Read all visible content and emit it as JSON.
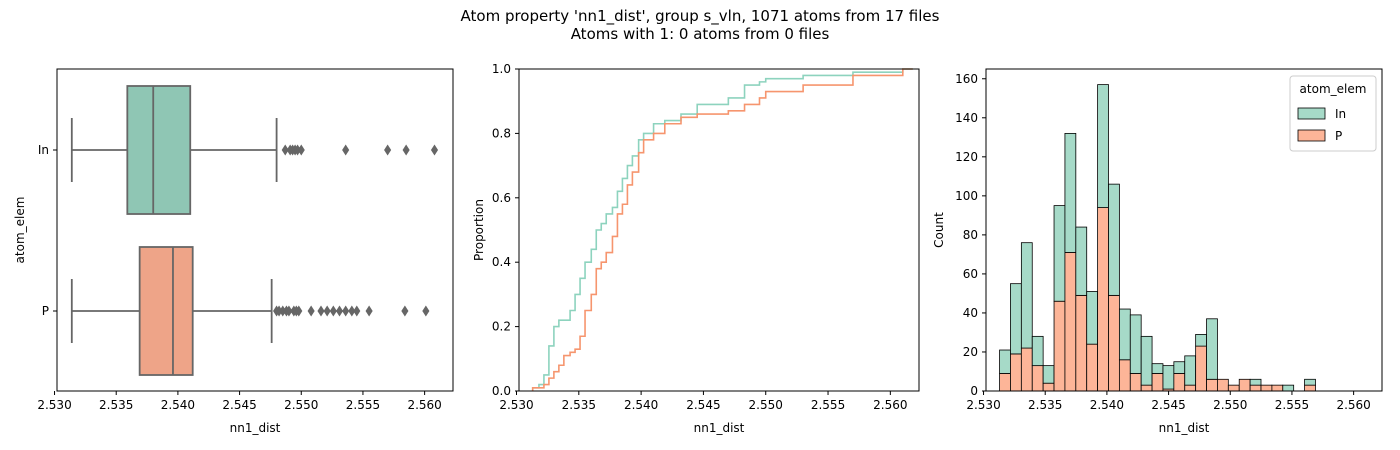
{
  "figure": {
    "title_line1": "Atom property 'nn1_dist', group s_vln, 1071 atoms from 17 files",
    "title_line2": "Atoms with 1: 0 atoms from 0 files"
  },
  "colors": {
    "In": "#8fc6b4",
    "P": "#eea488",
    "In_hist": "#a6dac8",
    "P_hist": "#fdb598",
    "In_ecdf": "#8dd3be",
    "P_ecdf": "#f6956e",
    "box_edge": "#666666"
  },
  "chart_data": [
    {
      "type": "box",
      "xlabel": "nn1_dist",
      "ylabel": "atom_elem",
      "xlim": [
        2.5302,
        2.5623
      ],
      "xticks": [
        "2.530",
        "2.535",
        "2.540",
        "2.545",
        "2.550",
        "2.555",
        "2.560"
      ],
      "categories": [
        "In",
        "P"
      ],
      "series": [
        {
          "name": "In",
          "whisker_low": 2.5314,
          "q1": 2.5359,
          "median": 2.538,
          "q3": 2.541,
          "whisker_high": 2.548,
          "outliers": [
            2.5487,
            2.5491,
            2.5493,
            2.5495,
            2.5497,
            2.55,
            2.5536,
            2.557,
            2.5585,
            2.5608
          ]
        },
        {
          "name": "P",
          "whisker_low": 2.5314,
          "q1": 2.5369,
          "median": 2.5396,
          "q3": 2.5412,
          "whisker_high": 2.5476,
          "outliers": [
            2.548,
            2.5482,
            2.5485,
            2.5488,
            2.549,
            2.5494,
            2.5496,
            2.5498,
            2.5508,
            2.5516,
            2.5521,
            2.5526,
            2.5531,
            2.5536,
            2.5541,
            2.5545,
            2.5555,
            2.5584,
            2.5601
          ]
        }
      ]
    },
    {
      "type": "line",
      "xlabel": "nn1_dist",
      "ylabel": "Proportion",
      "xlim": [
        2.5302,
        2.5623
      ],
      "ylim": [
        0,
        1
      ],
      "xticks": [
        "2.530",
        "2.535",
        "2.540",
        "2.545",
        "2.550",
        "2.555",
        "2.560"
      ],
      "yticks": [
        "0.0",
        "0.2",
        "0.4",
        "0.6",
        "0.8",
        "1.0"
      ],
      "series": [
        {
          "name": "In",
          "x": [
            2.5313,
            2.5318,
            2.5322,
            2.5326,
            2.533,
            2.5334,
            2.5338,
            2.5343,
            2.5347,
            2.5351,
            2.5355,
            2.536,
            2.5364,
            2.5368,
            2.5372,
            2.5377,
            2.5381,
            2.5385,
            2.5389,
            2.5393,
            2.5398,
            2.5402,
            2.541,
            2.5419,
            2.5432,
            2.5445,
            2.547,
            2.5483,
            2.5495,
            2.55,
            2.553,
            2.557,
            2.561
          ],
          "y": [
            0.01,
            0.02,
            0.05,
            0.14,
            0.2,
            0.22,
            0.22,
            0.25,
            0.3,
            0.35,
            0.4,
            0.44,
            0.5,
            0.52,
            0.55,
            0.57,
            0.62,
            0.66,
            0.7,
            0.73,
            0.78,
            0.8,
            0.83,
            0.84,
            0.86,
            0.89,
            0.91,
            0.95,
            0.96,
            0.97,
            0.98,
            0.99,
            1.0
          ]
        },
        {
          "name": "P",
          "x": [
            2.5313,
            2.5318,
            2.5322,
            2.5326,
            2.533,
            2.5334,
            2.5338,
            2.5343,
            2.5347,
            2.5351,
            2.5355,
            2.536,
            2.5364,
            2.5368,
            2.5372,
            2.5377,
            2.5381,
            2.5385,
            2.5389,
            2.5393,
            2.5398,
            2.5402,
            2.541,
            2.5419,
            2.5432,
            2.5445,
            2.547,
            2.5483,
            2.5495,
            2.55,
            2.553,
            2.557,
            2.561
          ],
          "y": [
            0.01,
            0.01,
            0.02,
            0.04,
            0.06,
            0.08,
            0.11,
            0.12,
            0.13,
            0.17,
            0.25,
            0.3,
            0.38,
            0.4,
            0.43,
            0.48,
            0.55,
            0.58,
            0.64,
            0.68,
            0.74,
            0.78,
            0.8,
            0.83,
            0.85,
            0.86,
            0.87,
            0.89,
            0.91,
            0.93,
            0.95,
            0.98,
            1.0
          ]
        }
      ]
    },
    {
      "type": "bar",
      "stacked": true,
      "xlabel": "nn1_dist",
      "ylabel": "Count",
      "xlim": [
        2.5302,
        2.5623
      ],
      "ylim": [
        0,
        165
      ],
      "xticks": [
        "2.530",
        "2.535",
        "2.540",
        "2.545",
        "2.550",
        "2.555",
        "2.560"
      ],
      "yticks": [
        "0",
        "20",
        "40",
        "60",
        "80",
        "100",
        "120",
        "140",
        "160"
      ],
      "bin_start": 2.5313,
      "bin_width": 0.000883,
      "legend": {
        "title": "atom_elem",
        "placement": "top-right",
        "entries": [
          "In",
          "P"
        ]
      },
      "series": [
        {
          "name": "P",
          "values": [
            9,
            19,
            22,
            13,
            4,
            46,
            71,
            49,
            24,
            94,
            49,
            16,
            9,
            3,
            9,
            1,
            9,
            3,
            23,
            6,
            6,
            3,
            6,
            3,
            3,
            3,
            0,
            0,
            3
          ]
        },
        {
          "name": "In",
          "values": [
            12,
            36,
            54,
            15,
            9,
            49,
            61,
            35,
            27,
            63,
            57,
            26,
            30,
            25,
            5,
            12,
            6,
            15,
            6,
            31,
            0,
            0,
            0,
            3,
            0,
            0,
            3,
            0,
            3
          ]
        }
      ]
    }
  ]
}
